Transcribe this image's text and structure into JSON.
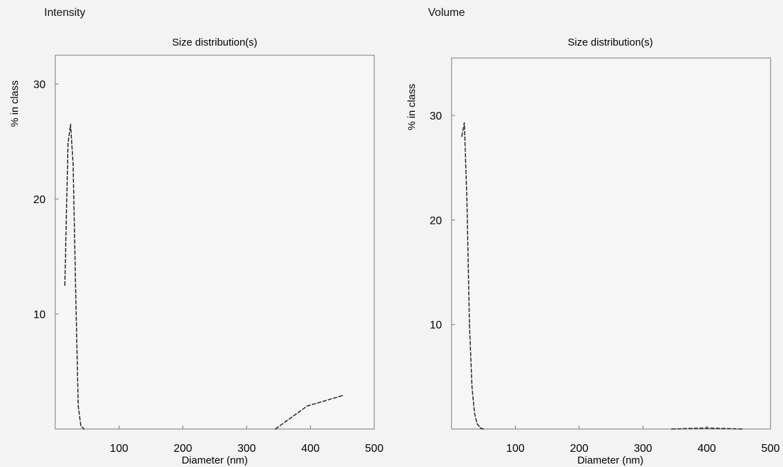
{
  "panels": [
    {
      "label": "Intensity"
    },
    {
      "label": "Volume"
    }
  ],
  "chart_data": [
    {
      "type": "line",
      "title": "Size distribution(s)",
      "panel_label": "Intensity",
      "xlabel": "Diameter (nm)",
      "ylabel": "% in class",
      "xlim": [
        0,
        500
      ],
      "ylim": [
        0,
        32.5
      ],
      "xticks": [
        100,
        200,
        300,
        400,
        500
      ],
      "yticks": [
        10,
        20,
        30
      ],
      "grid": false,
      "series": [
        {
          "x": [
            15,
            20,
            24,
            28,
            32,
            36,
            40,
            45
          ],
          "y": [
            12.5,
            24.8,
            26.5,
            23.0,
            12.0,
            2.0,
            0.3,
            0
          ]
        },
        {
          "x": [
            345,
            395,
            450
          ],
          "y": [
            0,
            2.0,
            2.9
          ]
        }
      ]
    },
    {
      "type": "line",
      "title": "Size distribution(s)",
      "panel_label": "Volume",
      "xlabel": "Diameter (nm)",
      "ylabel": "% in class",
      "xlim": [
        0,
        500
      ],
      "ylim": [
        0,
        35.5
      ],
      "xticks": [
        100,
        200,
        300,
        400,
        500
      ],
      "yticks": [
        10,
        20,
        30
      ],
      "grid": false,
      "series": [
        {
          "x": [
            16,
            20,
            24,
            28,
            32,
            36,
            40,
            45,
            50
          ],
          "y": [
            28.0,
            29.3,
            22.0,
            10.0,
            4.0,
            1.5,
            0.5,
            0.1,
            0
          ]
        },
        {
          "x": [
            345,
            400,
            455
          ],
          "y": [
            0,
            0.1,
            0
          ]
        }
      ]
    }
  ]
}
